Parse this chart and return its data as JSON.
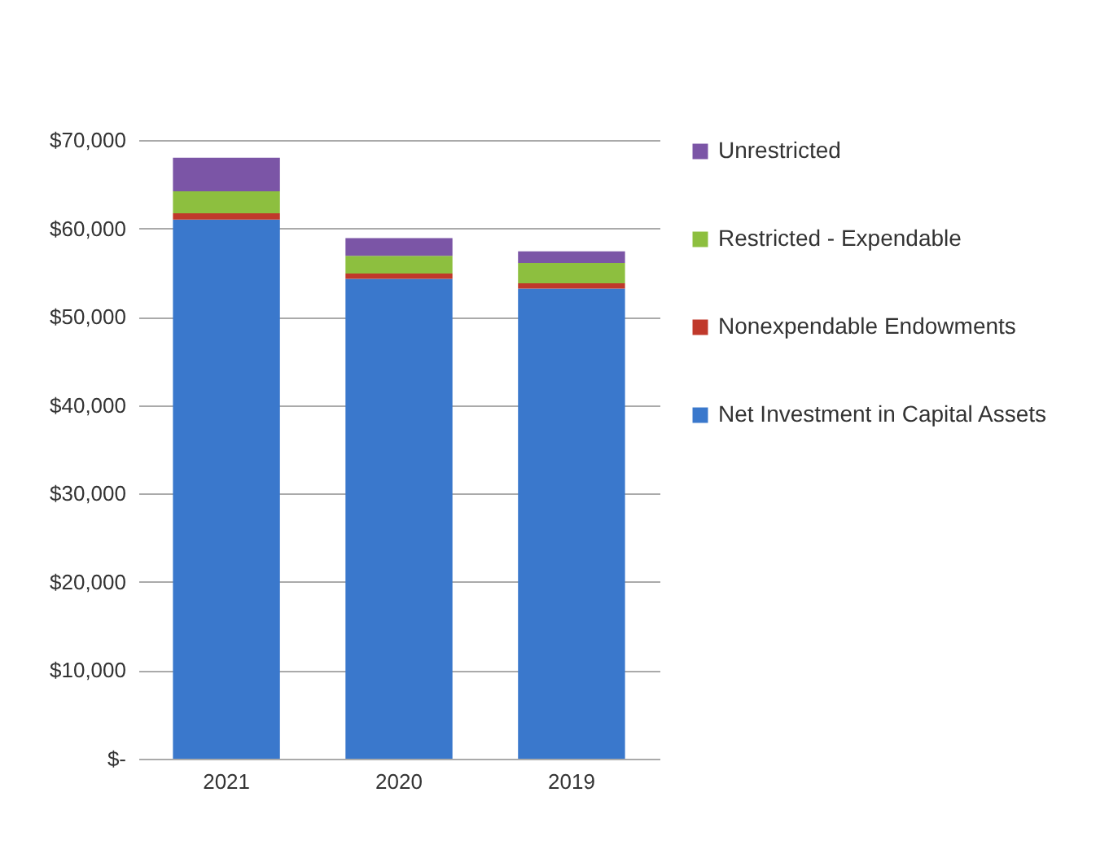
{
  "chart_data": {
    "type": "bar",
    "stacked": true,
    "categories": [
      "2021",
      "2020",
      "2019"
    ],
    "series": [
      {
        "name": "Net Investment in Capital Assets",
        "color": "#3a78cc",
        "values": [
          61000,
          54300,
          53200
        ]
      },
      {
        "name": "Nonexpendable Endowments",
        "color": "#c0392b",
        "values": [
          700,
          600,
          600
        ]
      },
      {
        "name": "Restricted - Expendable",
        "color": "#8dbf3f",
        "values": [
          2500,
          2000,
          2300
        ]
      },
      {
        "name": "Unrestricted",
        "color": "#7b55a6",
        "values": [
          3800,
          2000,
          1300
        ]
      }
    ],
    "ylim": [
      0,
      70000
    ],
    "yticks": [
      {
        "value": 0,
        "label": "$-"
      },
      {
        "value": 10000,
        "label": "$10,000"
      },
      {
        "value": 20000,
        "label": "$20,000"
      },
      {
        "value": 30000,
        "label": "$30,000"
      },
      {
        "value": 40000,
        "label": "$40,000"
      },
      {
        "value": 50000,
        "label": "$50,000"
      },
      {
        "value": 60000,
        "label": "$60,000"
      },
      {
        "value": 70000,
        "label": "$70,000"
      }
    ],
    "grid": "y",
    "legend": "right"
  }
}
